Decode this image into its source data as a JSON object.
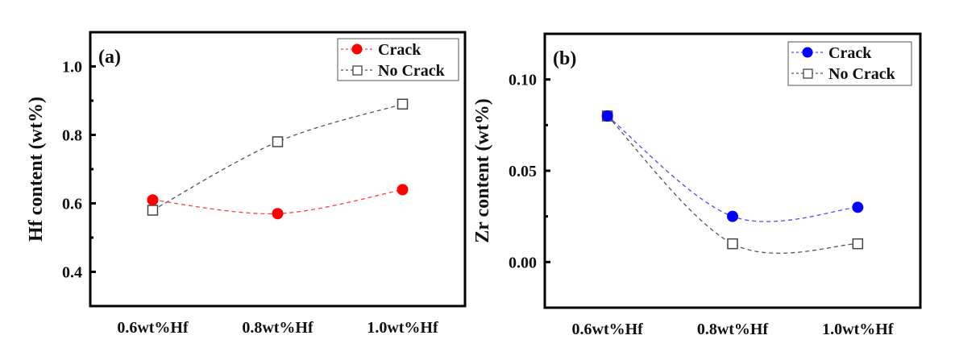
{
  "chart_data": [
    {
      "type": "line",
      "panel_label": "(a)",
      "title": "",
      "xlabel": "",
      "ylabel": "Hf content (wt%)",
      "categories": [
        "0.6wt%Hf",
        "0.8wt%Hf",
        "1.0wt%Hf"
      ],
      "ylim": [
        0.3,
        1.1
      ],
      "yticks": [
        0.4,
        0.6,
        0.8,
        1.0
      ],
      "ytick_labels": [
        "0.4",
        "0.6",
        "0.8",
        "1.0"
      ],
      "yminor": [
        0.5,
        0.7,
        0.9
      ],
      "grid": false,
      "legend_position": "top-right",
      "series": [
        {
          "name": "Crack",
          "marker": "filled-circle",
          "color": "#ff0000",
          "line_color": "#ff4040",
          "values": [
            0.61,
            0.57,
            0.64
          ]
        },
        {
          "name": "No Crack",
          "marker": "open-square",
          "color": "#444444",
          "line_color": "#555555",
          "values": [
            0.58,
            0.78,
            0.89
          ]
        }
      ]
    },
    {
      "type": "line",
      "panel_label": "(b)",
      "title": "",
      "xlabel": "",
      "ylabel": "Zr content (wt%)",
      "categories": [
        "0.6wt%Hf",
        "0.8wt%Hf",
        "1.0wt%Hf"
      ],
      "ylim": [
        -0.025,
        0.125
      ],
      "yticks": [
        0.0,
        0.05,
        0.1
      ],
      "ytick_labels": [
        "0.00",
        "0.05",
        "0.10"
      ],
      "yminor": [
        0.025,
        0.075
      ],
      "grid": false,
      "legend_position": "top-right",
      "series": [
        {
          "name": "Crack",
          "marker": "filled-circle",
          "color": "#0000ff",
          "line_color": "#4a4aff",
          "values": [
            0.08,
            0.025,
            0.03
          ]
        },
        {
          "name": "No Crack",
          "marker": "open-square",
          "color": "#444444",
          "line_color": "#555555",
          "values": [
            0.08,
            0.01,
            0.01
          ]
        }
      ]
    }
  ]
}
